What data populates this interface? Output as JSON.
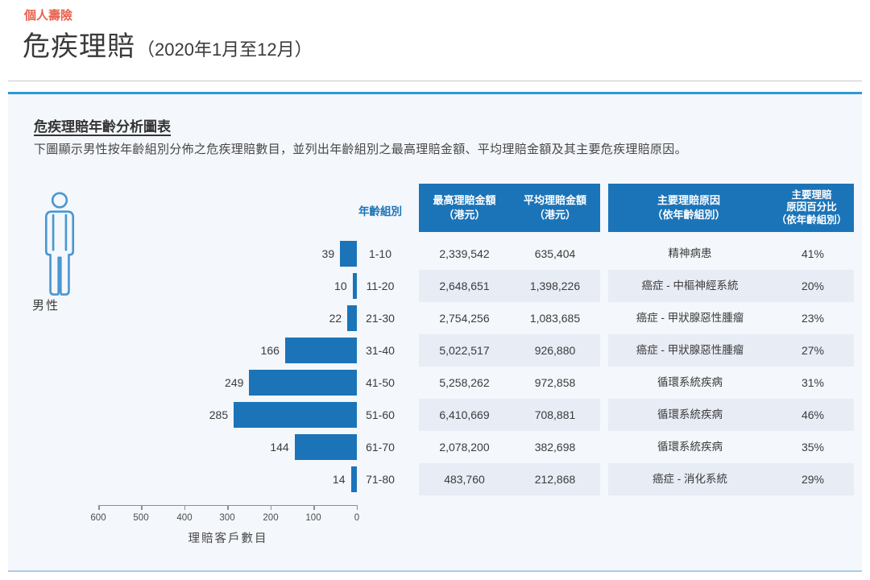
{
  "page": {
    "category": "個人壽險",
    "title": "危疾理賠",
    "period": "（2020年1月至12月）"
  },
  "section": {
    "heading": "危疾理賠年齡分析圖表",
    "description": "下圖顯示男性按年齡組別分佈之危疾理賠數目，並列出年齡組別之最高理賠金額、平均理賠金額及其主要危疾理賠原因。",
    "gender_label": "男性"
  },
  "table": {
    "headers": {
      "age": "年齡組別",
      "max_line1": "最高理賠金額",
      "max_line2": "（港元）",
      "avg_line1": "平均理賠金額",
      "avg_line2": "（港元）",
      "cause_line1": "主要理賠原因",
      "cause_line2": "（依年齡組別）",
      "pct_line1": "主要理賠",
      "pct_line2": "原因百分比",
      "pct_line3": "（依年齡組別）"
    },
    "rows": [
      {
        "count": "39",
        "age": "1-10",
        "max": "2,339,542",
        "avg": "635,404",
        "cause": "精神病患",
        "pct": "41%"
      },
      {
        "count": "10",
        "age": "11-20",
        "max": "2,648,651",
        "avg": "1,398,226",
        "cause": "癌症 - 中樞神經系統",
        "pct": "20%"
      },
      {
        "count": "22",
        "age": "21-30",
        "max": "2,754,256",
        "avg": "1,083,685",
        "cause": "癌症 - 甲狀腺惡性腫瘤",
        "pct": "23%"
      },
      {
        "count": "166",
        "age": "31-40",
        "max": "5,022,517",
        "avg": "926,880",
        "cause": "癌症 - 甲狀腺惡性腫瘤",
        "pct": "27%"
      },
      {
        "count": "249",
        "age": "41-50",
        "max": "5,258,262",
        "avg": "972,858",
        "cause": "循環系統疾病",
        "pct": "31%"
      },
      {
        "count": "285",
        "age": "51-60",
        "max": "6,410,669",
        "avg": "708,881",
        "cause": "循環系統疾病",
        "pct": "46%"
      },
      {
        "count": "144",
        "age": "61-70",
        "max": "2,078,200",
        "avg": "382,698",
        "cause": "循環系統疾病",
        "pct": "35%"
      },
      {
        "count": "14",
        "age": "71-80",
        "max": "483,760",
        "avg": "212,868",
        "cause": "癌症 - 消化系統",
        "pct": "29%"
      }
    ]
  },
  "chart_data": {
    "type": "bar",
    "orientation": "horizontal",
    "title": "危疾理賠年齡分析圖表",
    "categories": [
      "1-10",
      "11-20",
      "21-30",
      "31-40",
      "41-50",
      "51-60",
      "61-70",
      "71-80"
    ],
    "values": [
      39,
      10,
      22,
      166,
      249,
      285,
      144,
      14
    ],
    "xlabel": "理賠客戶數目",
    "xlim": [
      0,
      600
    ],
    "x_axis_reversed": true,
    "tick_labels": [
      "600",
      "500",
      "400",
      "300",
      "200",
      "100",
      "0"
    ],
    "bar_color": "#1b74b8",
    "legend": "none",
    "grid": false,
    "series": [
      {
        "name": "理賠客戶數目",
        "values": [
          39,
          10,
          22,
          166,
          249,
          285,
          144,
          14
        ]
      },
      {
        "name": "最高理賠金額（港元）",
        "values": [
          2339542,
          2648651,
          2754256,
          5022517,
          5258262,
          6410669,
          2078200,
          483760
        ]
      },
      {
        "name": "平均理賠金額（港元）",
        "values": [
          635404,
          1398226,
          1083685,
          926880,
          972858,
          708881,
          382698,
          212868
        ]
      },
      {
        "name": "主要理賠原因（依年齡組別）",
        "values": [
          "精神病患",
          "癌症 - 中樞神經系統",
          "癌症 - 甲狀腺惡性腫瘤",
          "癌症 - 甲狀腺惡性腫瘤",
          "循環系統疾病",
          "循環系統疾病",
          "循環系統疾病",
          "癌症 - 消化系統"
        ]
      },
      {
        "name": "主要理賠原因百分比（依年齡組別）",
        "values": [
          "41%",
          "20%",
          "23%",
          "27%",
          "31%",
          "46%",
          "35%",
          "29%"
        ]
      }
    ]
  },
  "colors": {
    "accent_blue": "#1b74b8",
    "line_blue": "#2b9ad6",
    "panel_bg": "#f4f7fb",
    "stripe": "#e8ecf5",
    "category_red": "#e8604c"
  }
}
